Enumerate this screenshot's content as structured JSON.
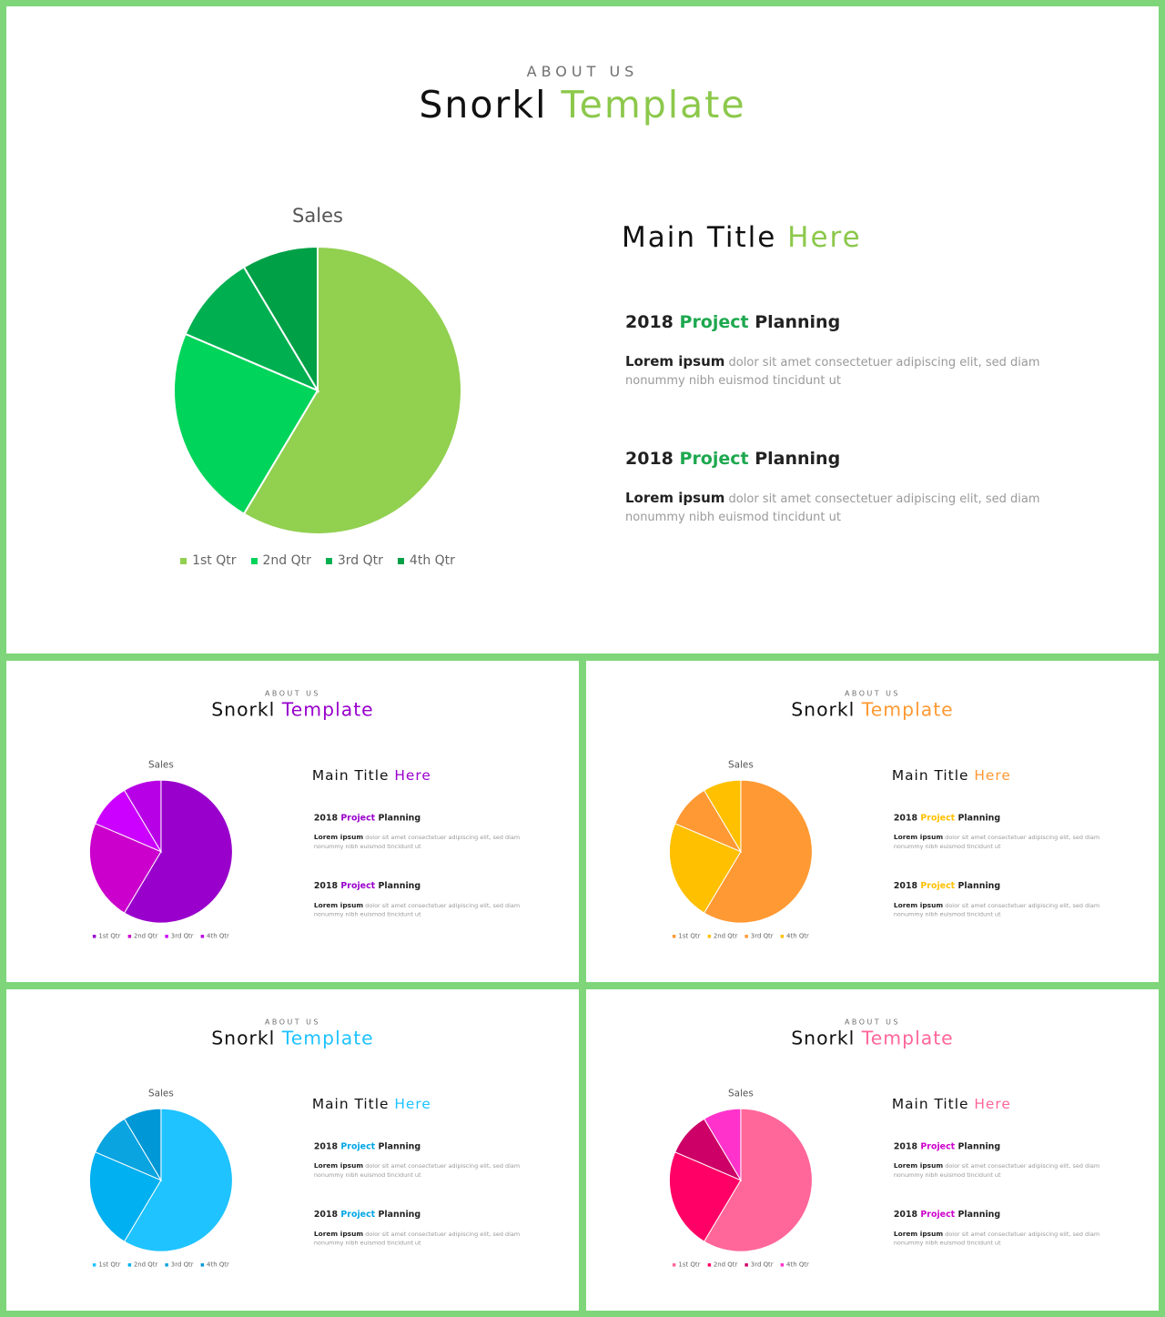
{
  "text": {
    "eyebrow": "ABOUT US",
    "title_part1": "Snorkl",
    "title_part2": "Template",
    "chart_title": "Sales",
    "main_title_part1": "Main Title",
    "main_title_part2": "Here",
    "section_year": "2018",
    "section_accent": "Project",
    "section_word": "Planning",
    "lead": "Lorem ipsum",
    "body": "dolor sit amet consectetuer adipiscing elit, sed diam nonummy  nibh euismod tincidunt ut",
    "legend": [
      "1st Qtr",
      "2nd Qtr",
      "3rd Qtr",
      "4th Qtr"
    ]
  },
  "slides": [
    {
      "title_accent": "#8cc84b",
      "main_accent": "#8cc84b",
      "section_accent": "#1ea84f",
      "pie_colors": [
        "#92d050",
        "#00d45a",
        "#00b050",
        "#00a046"
      ],
      "legend_colors": [
        "#92d050",
        "#00d45a",
        "#00b050",
        "#00a046"
      ]
    },
    {
      "title_accent": "#9900cc",
      "main_accent": "#9900cc",
      "section_accent": "#9900cc",
      "pie_colors": [
        "#9900cc",
        "#cc00cc",
        "#cc00ff",
        "#b800e6"
      ],
      "legend_colors": [
        "#9900cc",
        "#cc00cc",
        "#cc00ff",
        "#b800e6"
      ]
    },
    {
      "title_accent": "#ff9933",
      "main_accent": "#ff9933",
      "section_accent": "#ffc000",
      "pie_colors": [
        "#ff9933",
        "#ffc000",
        "#ff9933",
        "#ffc000"
      ],
      "legend_colors": [
        "#ff9933",
        "#ffc000",
        "#ff9933",
        "#ffc000"
      ]
    },
    {
      "title_accent": "#1ec3ff",
      "main_accent": "#1ec3ff",
      "section_accent": "#00a6e6",
      "pie_colors": [
        "#1ec3ff",
        "#00b0f0",
        "#0aa4e0",
        "#0097d6"
      ],
      "legend_colors": [
        "#1ec3ff",
        "#00b0f0",
        "#0aa4e0",
        "#0097d6"
      ]
    },
    {
      "title_accent": "#ff6699",
      "main_accent": "#ff6699",
      "section_accent": "#cc00cc",
      "pie_colors": [
        "#ff6699",
        "#ff0066",
        "#cc0066",
        "#ff33cc"
      ],
      "legend_colors": [
        "#ff6699",
        "#ff0066",
        "#cc0066",
        "#ff33cc"
      ]
    }
  ],
  "chart_data": {
    "type": "pie",
    "title": "Sales",
    "categories": [
      "1st Qtr",
      "2nd Qtr",
      "3rd Qtr",
      "4th Qtr"
    ],
    "values": [
      8.2,
      3.2,
      1.4,
      1.2
    ],
    "legend_position": "bottom"
  }
}
